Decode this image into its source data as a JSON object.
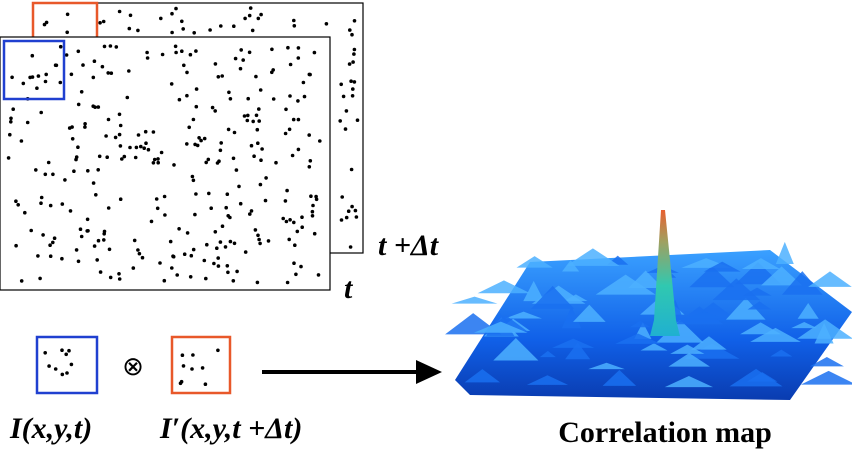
{
  "frames": [
    {
      "label": "t +Δt"
    },
    {
      "label": "t"
    }
  ],
  "operands": [
    {
      "label": "I(x,y,t)"
    },
    {
      "label": "I′(x,y,t +Δt)"
    }
  ],
  "operator": "⊗",
  "result": {
    "label": "Correlation map"
  }
}
